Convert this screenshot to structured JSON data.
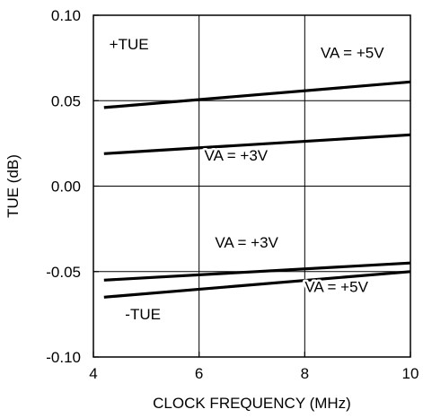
{
  "chart_data": {
    "type": "line",
    "title": "",
    "xlabel": "CLOCK FREQUENCY (MHz)",
    "ylabel": "TUE (dB)",
    "xlim": [
      4,
      10
    ],
    "ylim": [
      -0.1,
      0.1
    ],
    "x_ticks": [
      4,
      6,
      8,
      10
    ],
    "x_tick_labels": [
      "4",
      "6",
      "8",
      "10"
    ],
    "y_ticks": [
      -0.1,
      -0.05,
      0.0,
      0.05,
      0.1
    ],
    "y_tick_labels": [
      "-0.10",
      "-0.05",
      "0.00",
      "0.05",
      "0.10"
    ],
    "grid": true,
    "series": [
      {
        "name": "VA = +5V",
        "group": "+TUE",
        "x": [
          4.2,
          10
        ],
        "y": [
          0.046,
          0.061
        ]
      },
      {
        "name": "VA = +3V",
        "group": "+TUE",
        "x": [
          4.2,
          10
        ],
        "y": [
          0.019,
          0.03
        ]
      },
      {
        "name": "VA = +3V",
        "group": "-TUE",
        "x": [
          4.2,
          10
        ],
        "y": [
          -0.055,
          -0.045
        ]
      },
      {
        "name": "VA = +5V",
        "group": "-TUE",
        "x": [
          4.2,
          10
        ],
        "y": [
          -0.065,
          -0.05
        ]
      }
    ],
    "annotations": [
      {
        "text": "+TUE",
        "x": 4.3,
        "y": 0.08
      },
      {
        "text": "VA = +5V",
        "x": 8.3,
        "y": 0.075
      },
      {
        "text": "VA = +3V",
        "x": 6.1,
        "y": 0.015
      },
      {
        "text": "VA = +3V",
        "x": 6.3,
        "y": -0.036
      },
      {
        "text": "VA = +5V",
        "x": 8.0,
        "y": -0.062
      },
      {
        "text": "-TUE",
        "x": 4.6,
        "y": -0.078
      }
    ],
    "colors": {
      "line": "#000000",
      "grid": "#000000",
      "background": "#ffffff"
    }
  }
}
